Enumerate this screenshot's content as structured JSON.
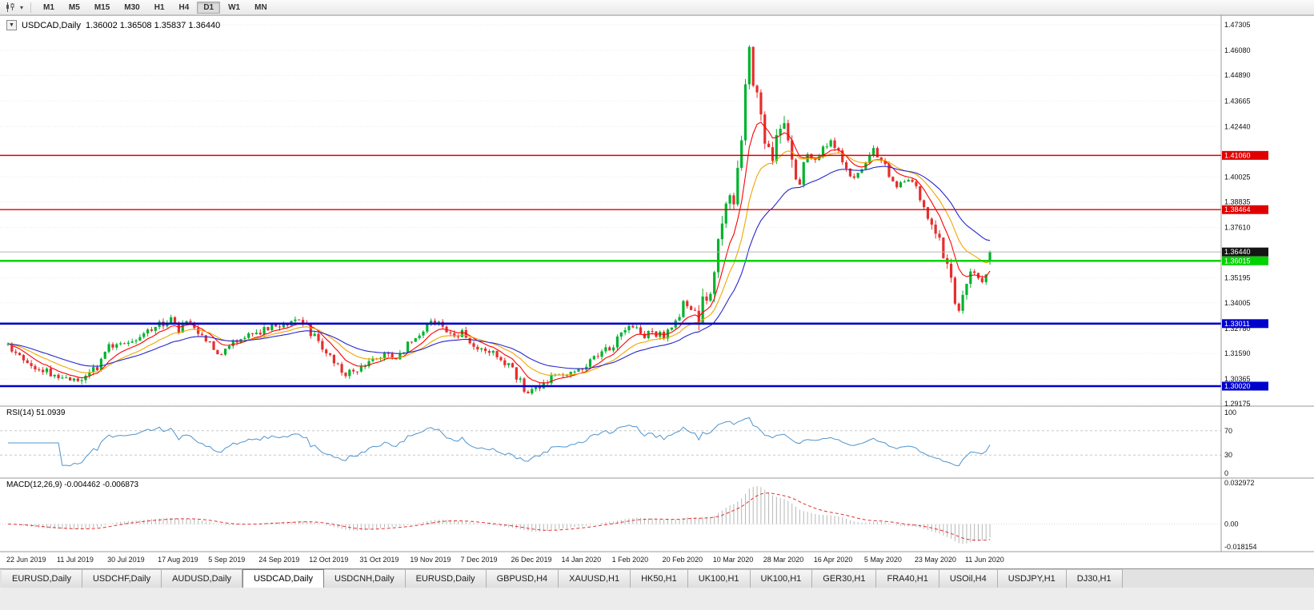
{
  "toolbar": {
    "timeframes": [
      "M1",
      "M5",
      "M15",
      "M30",
      "H1",
      "H4",
      "D1",
      "W1",
      "MN"
    ],
    "active_timeframe": "D1"
  },
  "chart_header": {
    "symbol_title": "USDCAD,Daily",
    "ohlc": "1.36002 1.36508 1.35837 1.36440",
    "menu_icon_glyph": "▼"
  },
  "indicators": {
    "rsi_label": "RSI(14) 51.0939",
    "macd_label": "MACD(12,26,9) -0.004462 -0.006873"
  },
  "axes": {
    "price_ticks": [
      {
        "label": "1.47305",
        "value": 1.47305
      },
      {
        "label": "1.46080",
        "value": 1.4608
      },
      {
        "label": "1.44890",
        "value": 1.4489
      },
      {
        "label": "1.43665",
        "value": 1.43665
      },
      {
        "label": "1.42440",
        "value": 1.4244
      },
      {
        "label": "1.40025",
        "value": 1.40025
      },
      {
        "label": "1.38835",
        "value": 1.38835
      },
      {
        "label": "1.37610",
        "value": 1.3761
      },
      {
        "label": "1.35195",
        "value": 1.35195
      },
      {
        "label": "1.34005",
        "value": 1.34005
      },
      {
        "label": "1.32780",
        "value": 1.3278
      },
      {
        "label": "1.31590",
        "value": 1.3159
      },
      {
        "label": "1.30365",
        "value": 1.30365
      },
      {
        "label": "1.29175",
        "value": 1.29175
      }
    ],
    "rsi_ticks": [
      {
        "label": "100",
        "value": 100
      },
      {
        "label": "70",
        "value": 70
      },
      {
        "label": "30",
        "value": 30
      },
      {
        "label": "0",
        "value": 0
      }
    ],
    "macd_ticks": [
      {
        "label": "0.032972",
        "value": 0.032972
      },
      {
        "label": "0.00",
        "value": 0
      },
      {
        "label": "-0.018154",
        "value": -0.018154
      }
    ],
    "dates": [
      {
        "label": "22 Jun 2019",
        "index": 0
      },
      {
        "label": "11 Jul 2019",
        "index": 13
      },
      {
        "label": "30 Jul 2019",
        "index": 26
      },
      {
        "label": "17 Aug 2019",
        "index": 39
      },
      {
        "label": "5 Sep 2019",
        "index": 52
      },
      {
        "label": "24 Sep 2019",
        "index": 65
      },
      {
        "label": "12 Oct 2019",
        "index": 78
      },
      {
        "label": "31 Oct 2019",
        "index": 91
      },
      {
        "label": "19 Nov 2019",
        "index": 104
      },
      {
        "label": "7 Dec 2019",
        "index": 117
      },
      {
        "label": "26 Dec 2019",
        "index": 130
      },
      {
        "label": "14 Jan 2020",
        "index": 143
      },
      {
        "label": "1 Feb 2020",
        "index": 156
      },
      {
        "label": "20 Feb 2020",
        "index": 169
      },
      {
        "label": "10 Mar 2020",
        "index": 182
      },
      {
        "label": "28 Mar 2020",
        "index": 195
      },
      {
        "label": "16 Apr 2020",
        "index": 208
      },
      {
        "label": "5 May 2020",
        "index": 221
      },
      {
        "label": "23 May 2020",
        "index": 234
      },
      {
        "label": "11 Jun 2020",
        "index": 247
      }
    ]
  },
  "chart_data": {
    "type": "candlestick",
    "symbol": "USDCAD",
    "timeframe": "Daily",
    "num_candles": 254,
    "ylim": [
      1.2914,
      1.475
    ],
    "last_candle": {
      "open": 1.36002,
      "high": 1.36508,
      "low": 1.35837,
      "close": 1.3644
    },
    "current_price": {
      "value": 1.3644,
      "label": "1.36440"
    },
    "price_path": [
      [
        0,
        1.3205
      ],
      [
        4,
        1.3125
      ],
      [
        8,
        1.308
      ],
      [
        13,
        1.3052
      ],
      [
        17,
        1.3028
      ],
      [
        20,
        1.306
      ],
      [
        23,
        1.309
      ],
      [
        26,
        1.319
      ],
      [
        29,
        1.3215
      ],
      [
        32,
        1.3225
      ],
      [
        36,
        1.3262
      ],
      [
        39,
        1.33
      ],
      [
        42,
        1.332
      ],
      [
        44,
        1.327
      ],
      [
        46,
        1.3305
      ],
      [
        48,
        1.329
      ],
      [
        50,
        1.3245
      ],
      [
        52,
        1.3215
      ],
      [
        54,
        1.3155
      ],
      [
        56,
        1.317
      ],
      [
        58,
        1.3215
      ],
      [
        61,
        1.3245
      ],
      [
        65,
        1.3265
      ],
      [
        68,
        1.33
      ],
      [
        71,
        1.328
      ],
      [
        73,
        1.331
      ],
      [
        75,
        1.3325
      ],
      [
        77,
        1.329
      ],
      [
        78,
        1.325
      ],
      [
        80,
        1.322
      ],
      [
        82,
        1.316
      ],
      [
        84,
        1.311
      ],
      [
        86,
        1.3075
      ],
      [
        89,
        1.3055
      ],
      [
        91,
        1.308
      ],
      [
        94,
        1.312
      ],
      [
        97,
        1.3155
      ],
      [
        100,
        1.314
      ],
      [
        102,
        1.3175
      ],
      [
        104,
        1.322
      ],
      [
        107,
        1.327
      ],
      [
        109,
        1.3305
      ],
      [
        111,
        1.33
      ],
      [
        113,
        1.3275
      ],
      [
        115,
        1.325
      ],
      [
        117,
        1.3255
      ],
      [
        119,
        1.322
      ],
      [
        121,
        1.317
      ],
      [
        124,
        1.3165
      ],
      [
        126,
        1.3145
      ],
      [
        128,
        1.311
      ],
      [
        130,
        1.308
      ],
      [
        132,
        1.302
      ],
      [
        134,
        1.2965
      ],
      [
        136,
        1.2985
      ],
      [
        138,
        1.301
      ],
      [
        140,
        1.3045
      ],
      [
        143,
        1.306
      ],
      [
        146,
        1.3075
      ],
      [
        149,
        1.3105
      ],
      [
        152,
        1.3155
      ],
      [
        156,
        1.32
      ],
      [
        158,
        1.325
      ],
      [
        160,
        1.329
      ],
      [
        162,
        1.327
      ],
      [
        164,
        1.3245
      ],
      [
        166,
        1.3255
      ],
      [
        169,
        1.3245
      ],
      [
        171,
        1.329
      ],
      [
        173,
        1.335
      ],
      [
        174,
        1.34
      ],
      [
        176,
        1.338
      ],
      [
        178,
        1.334
      ],
      [
        180,
        1.343
      ],
      [
        181,
        1.348
      ],
      [
        182,
        1.356
      ],
      [
        183,
        1.366
      ],
      [
        184,
        1.375
      ],
      [
        185,
        1.386
      ],
      [
        186,
        1.395
      ],
      [
        187,
        1.389
      ],
      [
        188,
        1.4
      ],
      [
        189,
        1.418
      ],
      [
        190,
        1.445
      ],
      [
        191,
        1.462
      ],
      [
        192,
        1.448
      ],
      [
        193,
        1.436
      ],
      [
        194,
        1.428
      ],
      [
        195,
        1.42
      ],
      [
        196,
        1.41
      ],
      [
        197,
        1.405
      ],
      [
        198,
        1.416
      ],
      [
        199,
        1.424
      ],
      [
        200,
        1.428
      ],
      [
        201,
        1.418
      ],
      [
        202,
        1.409
      ],
      [
        203,
        1.401
      ],
      [
        204,
        1.398
      ],
      [
        205,
        1.406
      ],
      [
        206,
        1.412
      ],
      [
        208,
        1.408
      ],
      [
        210,
        1.415
      ],
      [
        212,
        1.418
      ],
      [
        214,
        1.412
      ],
      [
        216,
        1.405
      ],
      [
        218,
        1.399
      ],
      [
        220,
        1.404
      ],
      [
        221,
        1.408
      ],
      [
        223,
        1.413
      ],
      [
        225,
        1.408
      ],
      [
        227,
        1.402
      ],
      [
        229,
        1.397
      ],
      [
        231,
        1.4
      ],
      [
        233,
        1.398
      ],
      [
        234,
        1.396
      ],
      [
        236,
        1.386
      ],
      [
        238,
        1.376
      ],
      [
        240,
        1.37
      ],
      [
        241,
        1.364
      ],
      [
        242,
        1.356
      ],
      [
        243,
        1.35
      ],
      [
        244,
        1.342
      ],
      [
        245,
        1.336
      ],
      [
        246,
        1.342
      ],
      [
        247,
        1.348
      ],
      [
        248,
        1.354
      ],
      [
        249,
        1.356
      ],
      [
        250,
        1.353
      ],
      [
        251,
        1.351
      ],
      [
        252,
        1.355
      ],
      [
        253,
        1.3644
      ]
    ],
    "volatility_zones": [
      [
        178,
        202,
        2.6
      ],
      [
        236,
        248,
        1.6
      ]
    ],
    "hlines": [
      {
        "price": 1.4106,
        "label": "1.41060",
        "color": "#e00000",
        "width": 1.4
      },
      {
        "price": 1.38464,
        "label": "1.38464",
        "color": "#e00000",
        "width": 1.4
      },
      {
        "price": 1.36015,
        "label": "1.36015",
        "color": "#00d200",
        "width": 2.6
      },
      {
        "price": 1.33011,
        "label": "1.33011",
        "color": "#0000cc",
        "width": 2.6
      },
      {
        "price": 1.3002,
        "label": "1.30020",
        "color": "#0000cc",
        "width": 2.6
      }
    ],
    "moving_averages": [
      {
        "period": 8,
        "color": "#ff0000"
      },
      {
        "period": 16,
        "color": "#f0a500"
      },
      {
        "period": 30,
        "color": "#2727cc"
      }
    ],
    "rsi": {
      "period": 14,
      "value_label": "51.0939",
      "levels": [
        70,
        30
      ],
      "range": [
        0,
        100
      ],
      "color": "#4f94cd"
    },
    "macd": {
      "fast": 12,
      "slow": 26,
      "signal": 9,
      "main_value": -0.004462,
      "signal_value": -0.006873,
      "range": [
        -0.018154,
        0.032972
      ],
      "hist_color": "#b6b6b6",
      "signal_color": "#e03030"
    }
  },
  "colors": {
    "candle_up": "#00b22d",
    "candle_down": "#e62e2e",
    "current_price_line": "#b4b4b4",
    "current_price_box": "#151515",
    "grid": "#ebebeb",
    "panel_separator": "#9a9a9a"
  },
  "tabs": {
    "items": [
      "EURUSD,Daily",
      "USDCHF,Daily",
      "AUDUSD,Daily",
      "USDCAD,Daily",
      "USDCNH,Daily",
      "EURUSD,Daily",
      "GBPUSD,H4",
      "XAUUSD,H1",
      "HK50,H1",
      "UK100,H1",
      "UK100,H1",
      "GER30,H1",
      "FRA40,H1",
      "USOil,H4",
      "USDJPY,H1",
      "DJ30,H1"
    ],
    "active_index": 3
  }
}
